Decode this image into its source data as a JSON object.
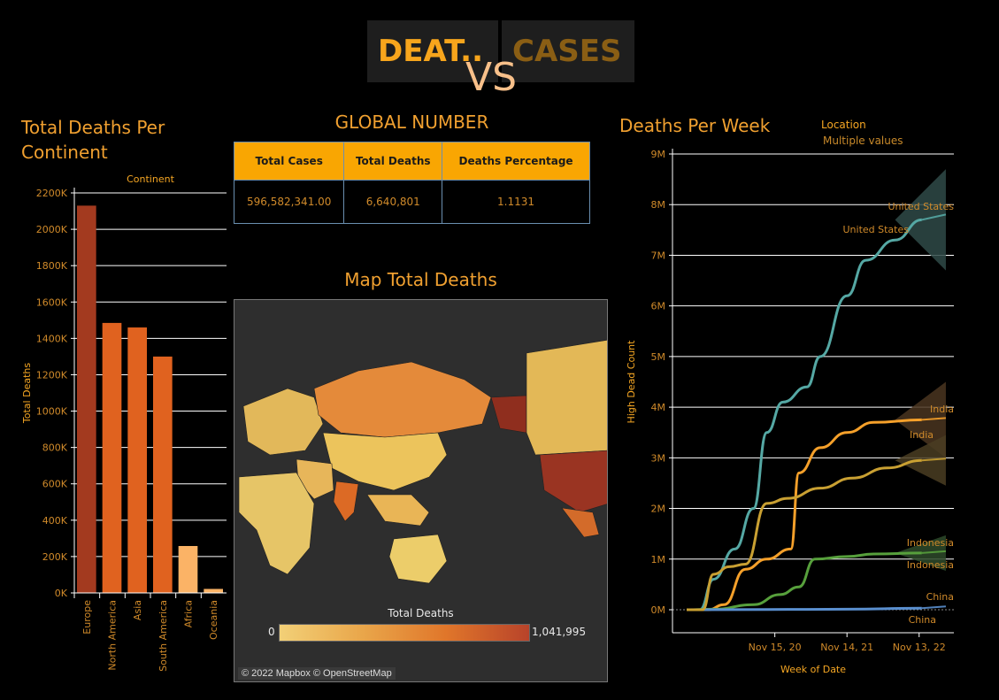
{
  "header": {
    "tab_deaths": "DEAT..",
    "tab_cases": "CASES",
    "vs": "VS"
  },
  "continent_chart": {
    "title_line1": "Total Deaths Per",
    "title_line2": "Continent",
    "color_bar": "#a33a1f",
    "color_mid": "#e0621f",
    "color_light": "#fbb366"
  },
  "global_number": {
    "title": "GLOBAL NUMBER",
    "headers": [
      "Total Cases",
      "Total Deaths",
      "Deaths Percentage"
    ],
    "values": [
      "596,582,341.00",
      "6,640,801",
      "1.1131"
    ]
  },
  "map": {
    "title": "Map Total Deaths",
    "legend_title": "Total Deaths",
    "legend_min": "0",
    "legend_max": "1,041,995",
    "copyright": "© 2022 Mapbox © OpenStreetMap"
  },
  "week_chart": {
    "title": "Deaths Per Week",
    "location_label": "Location",
    "location_value": "Multiple values"
  },
  "chart_data": [
    {
      "type": "bar",
      "header": "Continent",
      "ylabel": "Total Deaths",
      "categories": [
        "Europe",
        "North America",
        "Asia",
        "South America",
        "Africa",
        "Oceania"
      ],
      "values": [
        2130000,
        1485000,
        1460000,
        1300000,
        258000,
        22000
      ],
      "yticks": [
        "0K",
        "200K",
        "400K",
        "600K",
        "800K",
        "1000K",
        "1200K",
        "1400K",
        "1600K",
        "1800K",
        "2000K",
        "2200K"
      ],
      "ylim": [
        0,
        2200000
      ]
    },
    {
      "type": "line",
      "xlabel": "Week of Date",
      "ylabel": "High Dead Count",
      "xticks": [
        "Nov 15, 20",
        "Nov 14, 21",
        "Nov 13, 22"
      ],
      "yticks": [
        "0M",
        "1M",
        "2M",
        "3M",
        "4M",
        "5M",
        "6M",
        "7M",
        "8M",
        "9M"
      ],
      "ylim": [
        0,
        9000000
      ],
      "series": [
        {
          "name": "United States",
          "color": "#55a8a4",
          "points": [
            [
              0,
              0
            ],
            [
              0.05,
              0
            ],
            [
              0.1,
              600000
            ],
            [
              0.18,
              1200000
            ],
            [
              0.25,
              2000000
            ],
            [
              0.3,
              3500000
            ],
            [
              0.36,
              4100000
            ],
            [
              0.45,
              4400000
            ],
            [
              0.5,
              5000000
            ],
            [
              0.6,
              6200000
            ],
            [
              0.67,
              6900000
            ],
            [
              0.78,
              7300000
            ],
            [
              0.88,
              7700000
            ]
          ]
        },
        {
          "name": "India",
          "color": "#f5a02a",
          "points": [
            [
              0,
              0
            ],
            [
              0.08,
              0
            ],
            [
              0.14,
              100000
            ],
            [
              0.22,
              800000
            ],
            [
              0.3,
              1000000
            ],
            [
              0.39,
              1200000
            ],
            [
              0.42,
              2700000
            ],
            [
              0.5,
              3200000
            ],
            [
              0.6,
              3500000
            ],
            [
              0.7,
              3700000
            ],
            [
              0.88,
              3750000
            ]
          ]
        },
        {
          "name": "Indonesia",
          "color": "#57a03c",
          "points": [
            [
              0,
              0
            ],
            [
              0.1,
              10000
            ],
            [
              0.25,
              100000
            ],
            [
              0.35,
              300000
            ],
            [
              0.42,
              450000
            ],
            [
              0.48,
              1000000
            ],
            [
              0.6,
              1050000
            ],
            [
              0.7,
              1100000
            ],
            [
              0.88,
              1120000
            ]
          ]
        },
        {
          "name": "China",
          "color": "#5a8fcf",
          "points": [
            [
              0,
              0
            ],
            [
              0.3,
              5000
            ],
            [
              0.6,
              10000
            ],
            [
              0.88,
              30000
            ]
          ]
        },
        {
          "name": "Multiple values",
          "color": "#c9a032",
          "points": [
            [
              0,
              0
            ],
            [
              0.06,
              0
            ],
            [
              0.1,
              700000
            ],
            [
              0.16,
              850000
            ],
            [
              0.22,
              900000
            ],
            [
              0.3,
              2100000
            ],
            [
              0.38,
              2200000
            ],
            [
              0.5,
              2400000
            ],
            [
              0.62,
              2600000
            ],
            [
              0.75,
              2800000
            ],
            [
              0.88,
              2950000
            ]
          ]
        }
      ],
      "labels": [
        "United States",
        "United States",
        "India",
        "India",
        "Indonesia",
        "Indonesia",
        "China",
        "China"
      ]
    }
  ]
}
